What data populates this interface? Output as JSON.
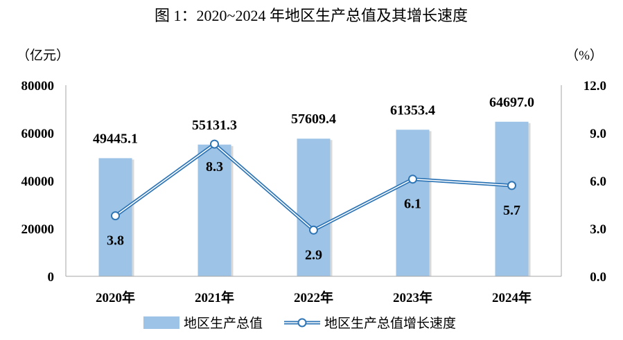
{
  "chart_data": {
    "type": "bar",
    "title": "图 1：2020~2024 年地区生产总值及其增长速度",
    "categories": [
      "2020年",
      "2021年",
      "2022年",
      "2023年",
      "2024年"
    ],
    "series": [
      {
        "name": "地区生产总值",
        "type": "bar",
        "axis": "left",
        "values": [
          49445.1,
          55131.3,
          57609.4,
          61353.4,
          64697.0
        ],
        "labels": [
          "49445.1",
          "55131.3",
          "57609.4",
          "61353.4",
          "64697.0"
        ],
        "color": "#9dc3e6"
      },
      {
        "name": "地区生产总值增长速度",
        "type": "line",
        "axis": "right",
        "values": [
          3.8,
          8.3,
          2.9,
          6.1,
          5.7
        ],
        "labels": [
          "3.8",
          "8.3",
          "2.9",
          "6.1",
          "5.7"
        ],
        "color": "#2e75b6"
      }
    ],
    "y_left": {
      "unit": "（亿元）",
      "ylim": [
        0,
        80000
      ],
      "ticks": [
        "0",
        "20000",
        "40000",
        "60000",
        "80000"
      ]
    },
    "y_right": {
      "unit": "（%）",
      "ylim": [
        0,
        12
      ],
      "ticks": [
        "0.0",
        "3.0",
        "6.0",
        "9.0",
        "12.0"
      ]
    },
    "grid": false,
    "legend_position": "bottom-center"
  }
}
